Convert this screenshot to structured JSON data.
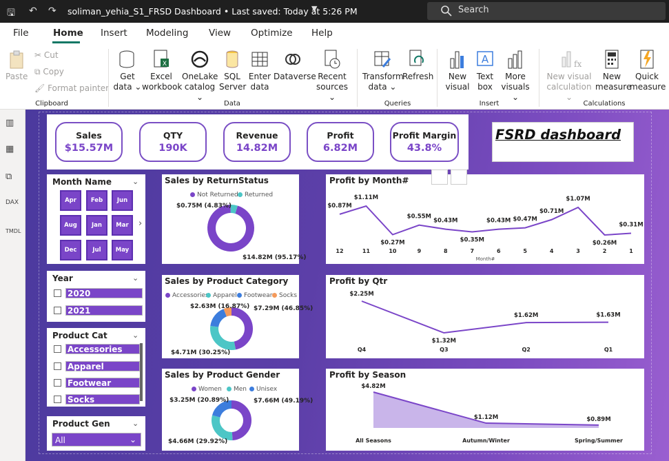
{
  "titlebar": {
    "title": "soliman_yehia_S1_FRSD Dashboard • Last saved: Today at 5:26 PM",
    "search_placeholder": "Search"
  },
  "menu": {
    "items": [
      "File",
      "Home",
      "Insert",
      "Modeling",
      "View",
      "Optimize",
      "Help"
    ],
    "active": "Home"
  },
  "ribbon": {
    "clipboard": {
      "paste": "Paste",
      "cut": "Cut",
      "copy": "Copy",
      "format_painter": "Format painter",
      "group": "Clipboard"
    },
    "data": {
      "get_data": [
        "Get",
        "data ⌄"
      ],
      "excel": [
        "Excel",
        "workbook"
      ],
      "onelake": [
        "OneLake",
        "catalog ⌄"
      ],
      "sql": [
        "SQL",
        "Server"
      ],
      "enter": [
        "Enter",
        "data"
      ],
      "dataverse": [
        "Dataverse",
        ""
      ],
      "recent": [
        "Recent",
        "sources ⌄"
      ],
      "group": "Data"
    },
    "queries": {
      "transform": [
        "Transform",
        "data ⌄"
      ],
      "refresh": [
        "Refresh",
        ""
      ],
      "group": "Queries"
    },
    "insert": {
      "new_visual": [
        "New",
        "visual"
      ],
      "text_box": [
        "Text",
        "box"
      ],
      "more_visuals": [
        "More",
        "visuals ⌄"
      ],
      "group": "Insert"
    },
    "calculations": {
      "new_visual_calc": [
        "New visual",
        "calculation ⌄"
      ],
      "new_measure": [
        "New",
        "measure"
      ],
      "quick_measure": [
        "Quick",
        "measure"
      ],
      "group": "Calculations"
    }
  },
  "kpis": [
    {
      "title": "Sales",
      "value": "$15.57M"
    },
    {
      "title": "QTY",
      "value": "190K"
    },
    {
      "title": "Revenue",
      "value": "14.82M"
    },
    {
      "title": "Profit",
      "value": "6.82M"
    },
    {
      "title": "Profit Margin",
      "value": "43.8%"
    }
  ],
  "dashboard_title": "FSRD dashboard",
  "slicers": {
    "month": {
      "title": "Month Name",
      "tiles": [
        "Apr",
        "Feb",
        "Jun",
        "Aug",
        "Jan",
        "Mar",
        "Dec",
        "Jul",
        "May"
      ]
    },
    "year": {
      "title": "Year",
      "options": [
        "2020",
        "2021"
      ]
    },
    "product_cat": {
      "title": "Product Cat",
      "options": [
        "Accessories",
        "Apparel",
        "Footwear",
        "Socks"
      ]
    },
    "product_gen": {
      "title": "Product Gen",
      "selected": "All"
    }
  },
  "colors": {
    "purple": "#7a45c8",
    "teal": "#4cc6c6",
    "blue": "#3c7ddd",
    "orange": "#f49a5b",
    "canvas": "#5c3fa8"
  },
  "chart_data": [
    {
      "type": "donut",
      "title": "Sales by ReturnStatus",
      "legend": [
        "Not Returned",
        "Returned"
      ],
      "slices": [
        {
          "name": "Not Returned",
          "value": 14.82,
          "label": "$14.82M (95.17%)"
        },
        {
          "name": "Returned",
          "value": 0.75,
          "label": "$0.75M (4.83%)"
        }
      ]
    },
    {
      "type": "donut",
      "title": "Sales by Product Category",
      "legend": [
        "Accessories",
        "Apparel",
        "Footwear",
        "Socks"
      ],
      "slices": [
        {
          "name": "Accessories",
          "value": 7.29,
          "label": "$7.29M (46.85%)"
        },
        {
          "name": "Apparel",
          "value": 4.71,
          "label": "$4.71M (30.25%)"
        },
        {
          "name": "Footwear",
          "value": 2.63,
          "label": "$2.63M (16.87%)"
        },
        {
          "name": "Socks",
          "value": 0.94,
          "label": ""
        }
      ]
    },
    {
      "type": "donut",
      "title": "Sales by Product Gender",
      "legend": [
        "Women",
        "Men",
        "Unisex"
      ],
      "slices": [
        {
          "name": "Women",
          "value": 7.66,
          "label": "$7.66M (49.19%)"
        },
        {
          "name": "Men",
          "value": 4.66,
          "label": "$4.66M (29.92%)"
        },
        {
          "name": "Unisex",
          "value": 3.25,
          "label": "$3.25M (20.89%)"
        }
      ]
    },
    {
      "type": "line",
      "title": "Profit by Month#",
      "xlabel": "Month#",
      "x": [
        "12",
        "11",
        "10",
        "9",
        "8",
        "7",
        "6",
        "5",
        "4",
        "3",
        "2",
        "1"
      ],
      "values": [
        0.87,
        1.11,
        0.27,
        0.55,
        0.43,
        0.35,
        0.43,
        0.47,
        0.71,
        1.07,
        0.26,
        0.31
      ],
      "labels": [
        "$0.87M",
        "$1.11M",
        "$0.27M",
        "$0.55M",
        "$0.43M",
        "$0.35M",
        "$0.43M",
        "$0.47M",
        "$0.71M",
        "$1.07M",
        "$0.26M",
        "$0.31M"
      ]
    },
    {
      "type": "line",
      "title": "Profit by Qtr",
      "x": [
        "Q4",
        "Q3",
        "Q2",
        "Q1"
      ],
      "values": [
        2.25,
        1.32,
        1.62,
        1.63
      ],
      "labels": [
        "$2.25M",
        "$1.32M",
        "$1.62M",
        "$1.63M"
      ]
    },
    {
      "type": "area",
      "title": "Profit by Season",
      "x": [
        "All Seasons",
        "Autumn/Winter",
        "Spring/Summer"
      ],
      "values": [
        4.82,
        1.12,
        0.89
      ],
      "labels": [
        "$4.82M",
        "$1.12M",
        "$0.89M"
      ]
    }
  ]
}
